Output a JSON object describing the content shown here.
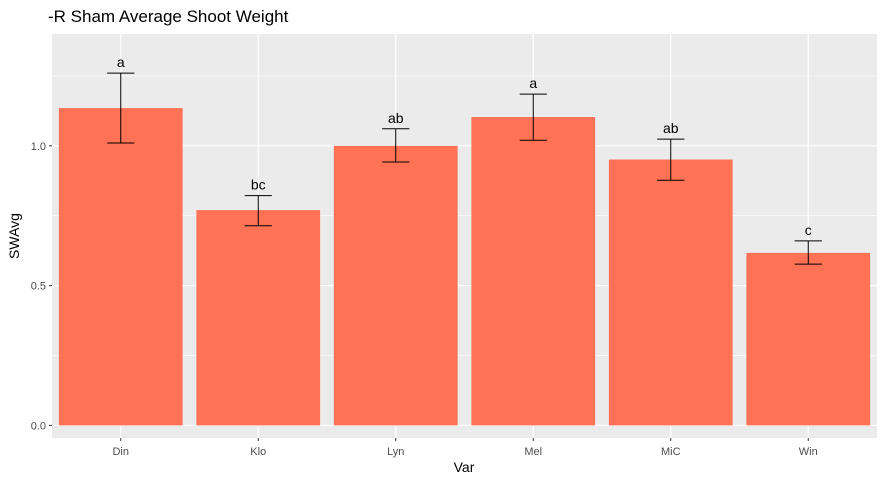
{
  "chart_data": {
    "type": "bar",
    "title": "-R Sham Average Shoot Weight",
    "xlabel": "Var",
    "ylabel": "SWAvg",
    "categories": [
      "Din",
      "Klo",
      "Lyn",
      "Mel",
      "MiC",
      "Win"
    ],
    "values": [
      1.135,
      0.77,
      1.0,
      1.103,
      0.951,
      0.617
    ],
    "error_low": [
      1.01,
      0.714,
      0.942,
      1.02,
      0.877,
      0.577
    ],
    "error_high": [
      1.26,
      0.822,
      1.061,
      1.185,
      1.024,
      0.66
    ],
    "labels": [
      "a",
      "bc",
      "ab",
      "a",
      "ab",
      "c"
    ],
    "ylim": [
      -0.045,
      1.4
    ],
    "yticks": [
      0.0,
      0.5,
      1.0
    ],
    "ytick_labels": [
      "0.0",
      "0.5",
      "1.0"
    ],
    "grid": true,
    "colors": {
      "bar": "#ff7256",
      "panel": "#ebebeb",
      "grid": "#ffffff",
      "errorbar": "#000000"
    }
  }
}
